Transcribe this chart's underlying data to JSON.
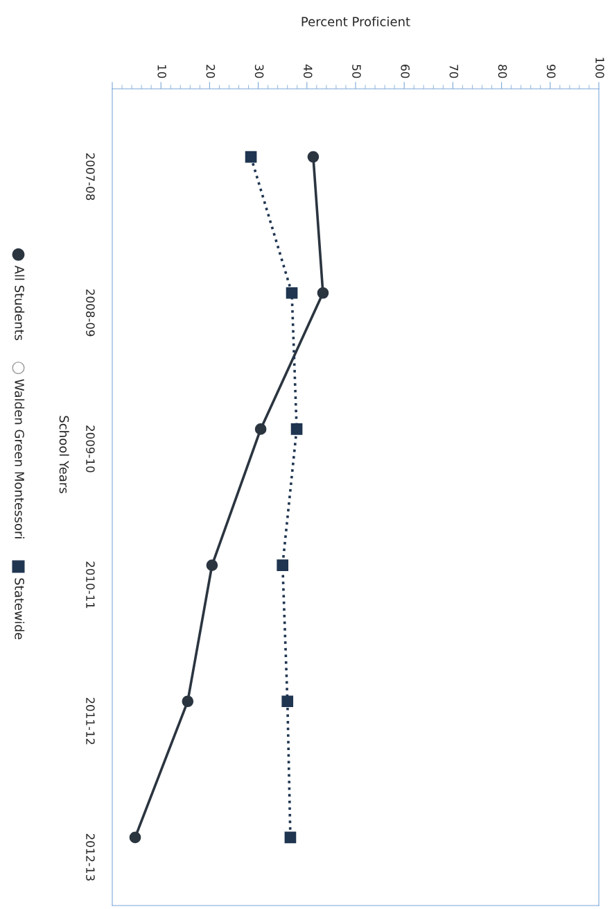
{
  "chart_data": {
    "type": "line",
    "orientation": "horizontal",
    "xlabel": "Percent Proficient",
    "ylabel": "School Years",
    "categories": [
      "2007-08",
      "2008-09",
      "2009-10",
      "2010-11",
      "2011-12",
      "2012-13"
    ],
    "series": [
      {
        "name": "All Students",
        "color": "#2b3540",
        "marker": "circle",
        "line_style": "solid",
        "values": [
          41.3,
          43.3,
          30.5,
          20.5,
          15.5,
          4.7
        ]
      },
      {
        "name": "Walden Green Montessori",
        "color": "#9a9a9a",
        "marker": "circle",
        "line_style": "none",
        "values": [
          null,
          null,
          null,
          null,
          null,
          null
        ]
      },
      {
        "name": "Statewide",
        "color": "#1f3550",
        "marker": "square",
        "line_style": "dotted",
        "values": [
          28.5,
          36.9,
          37.9,
          35.0,
          36.0,
          36.6
        ]
      }
    ],
    "xlim": [
      0,
      100
    ],
    "xticks": [
      {
        "value": 0,
        "label": null
      },
      10,
      20,
      30,
      40,
      50,
      60,
      70,
      80,
      90,
      100
    ],
    "grid": false,
    "legend": "left"
  }
}
